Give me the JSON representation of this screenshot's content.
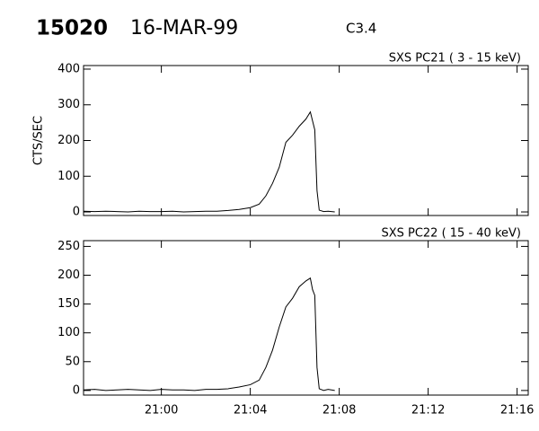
{
  "header": {
    "id": "15020",
    "date": "16-MAR-99",
    "class": "C3.4"
  },
  "chart_data": [
    {
      "type": "line",
      "subtitle": "SXS PC21  (  3 - 15 keV)",
      "y_label": "CTS/SEC",
      "x": [
        1256.5,
        1257,
        1257.5,
        1258,
        1258.5,
        1259,
        1259.5,
        1260,
        1260.5,
        1261,
        1261.5,
        1262,
        1262.5,
        1263,
        1263.5,
        1264,
        1264.4,
        1264.7,
        1265,
        1265.3,
        1265.6,
        1265.9,
        1266.2,
        1266.5,
        1266.7,
        1266.8,
        1266.9,
        1267.0,
        1267.1,
        1267.3,
        1267.5,
        1267.8
      ],
      "values": [
        2,
        1,
        2,
        1,
        0,
        2,
        1,
        1,
        2,
        0,
        1,
        2,
        2,
        4,
        7,
        12,
        22,
        45,
        80,
        125,
        195,
        215,
        240,
        260,
        280,
        255,
        230,
        60,
        5,
        1,
        2,
        0
      ],
      "color": "#000000",
      "xlim": [
        1256.5,
        1276.5
      ],
      "ylim": [
        -10,
        410
      ],
      "yticks": [
        0,
        100,
        200,
        300,
        400
      ]
    },
    {
      "type": "line",
      "subtitle": "SXS PC22  ( 15 - 40 keV)",
      "x": [
        1256.5,
        1257,
        1257.5,
        1258,
        1258.5,
        1259,
        1259.5,
        1260,
        1260.5,
        1261,
        1261.5,
        1262,
        1262.5,
        1263,
        1263.5,
        1264,
        1264.4,
        1264.7,
        1265,
        1265.3,
        1265.6,
        1265.9,
        1266.2,
        1266.5,
        1266.7,
        1266.8,
        1266.9,
        1267.0,
        1267.1,
        1267.3,
        1267.5,
        1267.8
      ],
      "values": [
        1,
        2,
        0,
        1,
        2,
        1,
        0,
        2,
        1,
        1,
        0,
        2,
        2,
        3,
        6,
        10,
        18,
        40,
        70,
        110,
        145,
        160,
        180,
        190,
        195,
        175,
        165,
        40,
        3,
        0,
        2,
        0
      ],
      "color": "#000000",
      "xlim": [
        1256.5,
        1276.5
      ],
      "xticks": [
        {
          "value": 1260,
          "label": "21:00"
        },
        {
          "value": 1264,
          "label": "21:04"
        },
        {
          "value": 1268,
          "label": "21:08"
        },
        {
          "value": 1272,
          "label": "21:12"
        },
        {
          "value": 1276,
          "label": "21:16"
        }
      ],
      "ylim": [
        -8,
        260
      ],
      "yticks": [
        0,
        50,
        100,
        150,
        200,
        250
      ]
    }
  ]
}
